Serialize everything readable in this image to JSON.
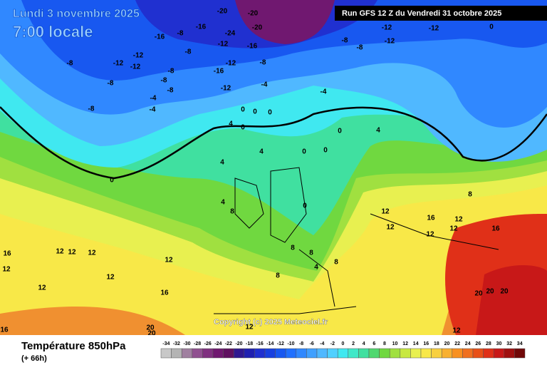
{
  "header": {
    "date": "Lundi 3 novembre 2025",
    "time": "7:00 locale",
    "run": "Run GFS 12 Z du Vendredi 31 octobre 2025"
  },
  "copyright": "Copyright (c) 2025 Meteociel.fr",
  "footer": {
    "title": "Température 850hPa",
    "lead": "(+ 66h)"
  },
  "scale": {
    "ticks": [
      -34,
      -32,
      -30,
      -28,
      -26,
      -24,
      -22,
      -20,
      -18,
      -16,
      -14,
      -12,
      -10,
      -8,
      -6,
      -4,
      -2,
      0,
      2,
      4,
      6,
      8,
      10,
      12,
      14,
      16,
      18,
      20,
      22,
      24,
      26,
      28,
      30,
      32,
      34
    ],
    "colors": [
      "#c8c8c8",
      "#b4b4b4",
      "#a080a0",
      "#905090",
      "#803080",
      "#701870",
      "#601060",
      "#301890",
      "#2020b0",
      "#2030d0",
      "#1840e0",
      "#1858f0",
      "#2070ff",
      "#3088ff",
      "#40a0ff",
      "#50b8ff",
      "#50d0ff",
      "#40e8f0",
      "#40e8c8",
      "#40e0a0",
      "#50d870",
      "#70d840",
      "#a0e040",
      "#c8e840",
      "#e8f050",
      "#f8e848",
      "#f8d040",
      "#f8b030",
      "#f89020",
      "#f07020",
      "#e85018",
      "#e03018",
      "#c81818",
      "#a01010",
      "#700808"
    ]
  },
  "map_labels": [
    -20,
    -20,
    -12,
    -12,
    0,
    -16,
    -24,
    -20,
    -16,
    -12,
    -16,
    -8,
    -8,
    -12,
    -8,
    -8,
    -12,
    -12,
    -12,
    -8,
    -12,
    -16,
    -8,
    -8,
    -8,
    -8,
    -8,
    -12,
    -4,
    -4,
    -4,
    -4,
    -8,
    0,
    0,
    0,
    4,
    0,
    4,
    0,
    4,
    0,
    0,
    4,
    0,
    8,
    4,
    8,
    12,
    16,
    12,
    12,
    12,
    16,
    12,
    8,
    0,
    8,
    4,
    8,
    8,
    12,
    12,
    12,
    16,
    12,
    12,
    12,
    12,
    16,
    20,
    20,
    20,
    20,
    20,
    12,
    16,
    12
  ]
}
